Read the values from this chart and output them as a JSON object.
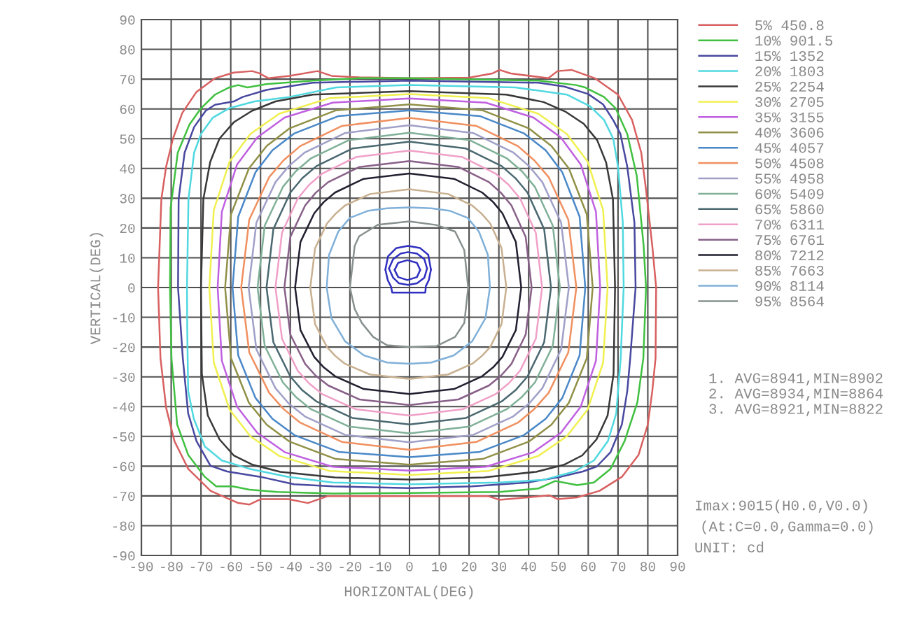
{
  "chart_data": {
    "type": "line",
    "xlabel": "HORIZONTAL(DEG)",
    "ylabel": "VERTICAL(DEG)",
    "xlim": [
      -90,
      90
    ],
    "ylim": [
      -90,
      90
    ],
    "xticks": [
      -90,
      -80,
      -70,
      -60,
      -50,
      -40,
      -30,
      -20,
      -10,
      0,
      10,
      20,
      30,
      40,
      50,
      60,
      70,
      80,
      90
    ],
    "yticks": [
      -90,
      -80,
      -70,
      -60,
      -50,
      -40,
      -30,
      -20,
      -10,
      0,
      10,
      20,
      30,
      40,
      50,
      60,
      70,
      80,
      90
    ],
    "grid": true,
    "legend": "top right",
    "annotations": [
      "1. AVG=8941,MIN=8902",
      "2. AVG=8934,MIN=8864",
      "3. AVG=8921,MIN=8822",
      "Imax:9015(H0.0,V0.0)",
      "(At:C=0.0,Gamma=0.0)",
      "UNIT: cd"
    ],
    "series": [
      {
        "name": "5% 450.8",
        "color": "#d86060",
        "x": [
          -84.4,
          -83.3,
          -81.7,
          -79.4,
          -76.3,
          -71.6,
          -65.3,
          -59,
          -52.8,
          -50.5,
          -47.3,
          -40.3,
          -30.9,
          -26.2,
          -16.9,
          0,
          20,
          27.8,
          30.2,
          34,
          46.6,
          49.7,
          54.4,
          62.2,
          70,
          74.7,
          77.8,
          79.4,
          81.5,
          82.8
        ],
        "values": [
          0,
          29.7,
          40.6,
          50,
          58.6,
          65.6,
          70.3,
          72.2,
          72.7,
          72,
          70.3,
          71.1,
          72.7,
          71.1,
          70.6,
          70.3,
          70.5,
          71.9,
          73.1,
          71.9,
          70.3,
          72.7,
          73.1,
          70.3,
          64.8,
          56.3,
          45.3,
          32.8,
          14,
          0
        ]
      },
      {
        "color": "#d86060",
        "x": [
          -84.4,
          -83.6,
          -81.7,
          -78.9,
          -74.3,
          -66.8,
          -57.5,
          -53.7,
          -50,
          -40.7,
          -34.1,
          -27.6,
          -16.4,
          0,
          26.5,
          30.2,
          39.6,
          47,
          49.8,
          56.3,
          63.8,
          71.3,
          76.9,
          80,
          81.5,
          82.6,
          82.8
        ],
        "values": [
          0,
          -23.7,
          -40.4,
          -51.6,
          -60.9,
          -68.3,
          -72.4,
          -72.9,
          -71.1,
          -71.1,
          -72.4,
          -70.1,
          -70.1,
          -70.1,
          -70.1,
          -71.3,
          -70.5,
          -69.8,
          -71.1,
          -70.5,
          -68.3,
          -63.6,
          -56.2,
          -46,
          -34.8,
          -23.7,
          0
        ]
      },
      {
        "name": "10% 901.5",
        "color": "#40c040",
        "x": [
          -80.4,
          -80.2,
          -77.8,
          -73.9,
          -70,
          -65.3,
          -60.6,
          -57.5,
          -54.4,
          -48.1,
          -32.5,
          -16.9,
          0,
          43.4,
          55.9,
          59,
          65.3,
          69.2,
          73.1,
          76.3,
          78.6,
          79.4
        ],
        "values": [
          0,
          26.6,
          45.3,
          54.7,
          60.2,
          64.8,
          67.2,
          68,
          67.2,
          68.3,
          69.5,
          70.3,
          70.3,
          69.5,
          68,
          67.2,
          64,
          60.2,
          51.6,
          37.5,
          14,
          0
        ]
      },
      {
        "color": "#40c040",
        "x": [
          -80.4,
          -79.9,
          -78,
          -74.3,
          -68.7,
          -64.9,
          -59.3,
          -53.7,
          -44.4,
          -25.7,
          0,
          30.2,
          43.3,
          48.9,
          51.7,
          56.3,
          61.9,
          67.5,
          72.2,
          76.5,
          78.5,
          79.4
        ],
        "values": [
          0,
          -23.7,
          -46,
          -56.2,
          -63.6,
          -66.8,
          -66.8,
          -67.9,
          -68.7,
          -69.2,
          -69,
          -68.7,
          -67.5,
          -65,
          -65.5,
          -66.4,
          -65.5,
          -60.9,
          -51.6,
          -38.6,
          -23.7,
          0
        ]
      },
      {
        "name": "15% 1352",
        "color": "#4848a0",
        "x": [
          -77.7,
          -77.5,
          -75.5,
          -72.3,
          -68.4,
          -65.3,
          -59,
          -56,
          -48,
          -32.5,
          0,
          43.4,
          52,
          60,
          65,
          68.5,
          70.8,
          73.1,
          75.5,
          75.9
        ],
        "values": [
          0,
          29.7,
          45.3,
          53.9,
          59.4,
          61.4,
          62.5,
          64,
          66.4,
          68.8,
          69.5,
          68.8,
          67.5,
          65,
          61.5,
          56,
          51.6,
          40.6,
          21.9,
          0
        ]
      },
      {
        "color": "#4848a0",
        "x": [
          -77.7,
          -76.1,
          -74.3,
          -71.5,
          -66.8,
          -61.2,
          -50,
          -38.8,
          -25.7,
          0,
          20.9,
          39.6,
          50.7,
          58.2,
          62.9,
          67.5,
          71.3,
          73.1,
          74.1,
          75.9
        ],
        "values": [
          0,
          -23.7,
          -42.3,
          -51.6,
          -59.9,
          -61.8,
          -63.6,
          -66.1,
          -66.8,
          -67.4,
          -66.8,
          -65.5,
          -63.6,
          -61.8,
          -60.1,
          -55.3,
          -46,
          -34.8,
          -23.7,
          0
        ]
      },
      {
        "name": "20% 1803",
        "color": "#50d8e0",
        "x": [
          -74.7,
          -74.2,
          -72.3,
          -70,
          -66.1,
          -60.6,
          -52,
          -40.3,
          -24.7,
          0,
          35.6,
          52.8,
          60.6,
          65.3,
          68.4,
          70,
          71.6,
          71.9
        ],
        "values": [
          0,
          29.7,
          45.3,
          51.6,
          57,
          60.2,
          62.5,
          64,
          67.2,
          68,
          67.2,
          64.8,
          60.9,
          56.3,
          50,
          40.6,
          21.9,
          0
        ]
      },
      {
        "color": "#50d8e0",
        "x": [
          -74.7,
          -74.6,
          -74.3,
          -72.4,
          -68.7,
          -63,
          -53.7,
          -40.7,
          -25.7,
          0,
          30.2,
          45.1,
          55.4,
          61.9,
          66.6,
          69.4,
          70.3,
          70.9,
          71.9
        ],
        "values": [
          0,
          -15,
          -34.8,
          -44.1,
          -53.4,
          -58.1,
          -60.9,
          -63.6,
          -65.5,
          -66.1,
          -65.5,
          -64.6,
          -61.8,
          -58.1,
          -51.6,
          -42.3,
          -31.1,
          -23.7,
          0
        ]
      },
      {
        "name": "25% 2254",
        "color": "#383838",
        "x": [
          -70,
          -69.2,
          -66.9,
          -63.8,
          -59,
          -52.8,
          -45,
          -32.5,
          0,
          32.5,
          45,
          52.5,
          58.5,
          63,
          66,
          68.3,
          69
        ],
        "values": [
          0,
          29.7,
          42.2,
          50,
          55.5,
          59.4,
          62.5,
          64.8,
          66,
          64.8,
          62.3,
          59,
          55,
          49.5,
          42,
          29.7,
          0
        ]
      },
      {
        "color": "#383838",
        "x": [
          -70,
          -69.7,
          -67.7,
          -63.8,
          -59,
          -52.8,
          -43.4,
          -25,
          0,
          25,
          42.5,
          52,
          58,
          62.8,
          66.5,
          68.5,
          69
        ],
        "values": [
          0,
          -29,
          -43,
          -51,
          -56.4,
          -59.5,
          -61.9,
          -63.8,
          -64.5,
          -63.8,
          -61.9,
          -59.5,
          -56.4,
          -51,
          -43,
          -29,
          0
        ]
      },
      {
        "name": "30% 2705",
        "color": "#f0f050",
        "x": [
          -67.2,
          -65.7,
          -60.4,
          -53.4,
          -43.7,
          -26.9,
          0,
          26.6,
          43.2,
          52.8,
          59.8,
          65,
          66.5
        ],
        "values": [
          0,
          26,
          42.3,
          51.6,
          58.4,
          63.6,
          65,
          63.6,
          58.4,
          51.6,
          42.3,
          26,
          0
        ]
      },
      {
        "color": "#f0f050",
        "x": [
          -67.2,
          -65.7,
          -60.4,
          -53.4,
          -43.7,
          -26.9,
          0,
          26.6,
          43.2,
          52.8,
          59.8,
          65,
          66.5
        ],
        "values": [
          0,
          -25.2,
          -41,
          -50,
          -56.6,
          -61.6,
          -63,
          -61.6,
          -56.6,
          -50,
          -41,
          -25.2,
          0
        ]
      },
      {
        "name": "35% 3155",
        "color": "#c060e0",
        "x": [
          -64.4,
          -63,
          -57.9,
          -51.1,
          -41.9,
          -25.8,
          0,
          25.6,
          41.6,
          50.8,
          57.5,
          62.6,
          64
        ],
        "values": [
          0,
          25.4,
          41.3,
          50.4,
          57.1,
          62.1,
          63.5,
          62.1,
          57.1,
          50.4,
          41.3,
          25.4,
          0
        ]
      },
      {
        "color": "#c060e0",
        "x": [
          -64.4,
          -63,
          -57.9,
          -51.1,
          -41.9,
          -25.8,
          0,
          25.6,
          41.6,
          50.8,
          57.5,
          62.6,
          64
        ],
        "values": [
          0,
          -24.6,
          -40,
          -48.8,
          -55.3,
          -60.2,
          -61.5,
          -60.2,
          -55.3,
          -48.8,
          -40,
          -24.6,
          0
        ]
      },
      {
        "name": "40% 3606",
        "color": "#909048",
        "x": [
          -61.9,
          -59.9,
          -53.9,
          -47.9,
          -40.2,
          -24.8,
          0,
          24.6,
          40,
          47.6,
          53.5,
          59.5,
          61.5
        ],
        "values": [
          0,
          24.6,
          40,
          47.6,
          53.5,
          59.5,
          61.5,
          59.5,
          53.5,
          47.6,
          40,
          24.6,
          0
        ]
      },
      {
        "color": "#909048",
        "x": [
          -61.9,
          -59.9,
          -53.9,
          -47.9,
          -40.2,
          -24.8,
          0,
          24.6,
          40,
          47.6,
          53.5,
          59.5,
          61.5
        ],
        "values": [
          0,
          -23.8,
          -38.7,
          -46.1,
          -51.8,
          -57.6,
          -59.5,
          -57.6,
          -51.8,
          -46.1,
          -38.7,
          -23.8,
          0
        ]
      },
      {
        "name": "45% 4057",
        "color": "#4a88c8",
        "x": [
          -59.4,
          -57.5,
          -51.7,
          -46,
          -38.6,
          -23.8,
          0,
          23.6,
          38.4,
          45.7,
          51.3,
          57.1,
          59
        ],
        "values": [
          0,
          23.8,
          38.7,
          46.1,
          51.8,
          57.6,
          59.5,
          57.6,
          51.8,
          46.1,
          38.7,
          23.8,
          0
        ]
      },
      {
        "color": "#4a88c8",
        "x": [
          -59.4,
          -57.5,
          -51.7,
          -46,
          -38.6,
          -23.8,
          0,
          23.6,
          38.4,
          45.7,
          51.3,
          57.1,
          59
        ],
        "values": [
          0,
          -22.8,
          -37.1,
          -44.1,
          -49.6,
          -55.2,
          -57,
          -55.2,
          -49.6,
          -44.1,
          -37.1,
          -22.8,
          0
        ]
      },
      {
        "name": "50% 4508",
        "color": "#f09060",
        "x": [
          -56.5,
          -53.8,
          -47.1,
          -42.3,
          -36.7,
          -22.6,
          0,
          22.4,
          36.4,
          41.9,
          46.7,
          53.3,
          56
        ],
        "values": [
          0,
          22.8,
          37.1,
          42.7,
          47.5,
          54.3,
          57,
          54.3,
          47.5,
          42.7,
          37.1,
          22.8,
          0
        ]
      },
      {
        "color": "#f09060",
        "x": [
          -56.5,
          -53.8,
          -47.1,
          -42.3,
          -36.7,
          -22.6,
          0,
          22.4,
          36.4,
          41.9,
          46.7,
          53.3,
          56
        ],
        "values": [
          0,
          -21.8,
          -35.4,
          -40.8,
          -45.4,
          -51.9,
          -54.5,
          -51.9,
          -45.4,
          -40.8,
          -35.4,
          -21.8,
          0
        ]
      },
      {
        "name": "55% 4958",
        "color": "#a0a0c8",
        "x": [
          -54,
          -51.4,
          -45,
          -40.5,
          -35.1,
          -21.6,
          0,
          21.4,
          34.8,
          40.1,
          44.6,
          50.9,
          53.5
        ],
        "values": [
          0,
          21.8,
          35.4,
          40.8,
          45.4,
          51.9,
          54.5,
          51.9,
          45.4,
          40.8,
          35.4,
          21.8,
          0
        ]
      },
      {
        "color": "#a0a0c8",
        "x": [
          -54,
          -51.4,
          -45,
          -40.5,
          -35.1,
          -21.6,
          0,
          21.4,
          34.8,
          40.1,
          44.6,
          50.9,
          53.5
        ],
        "values": [
          0,
          -20.8,
          -33.8,
          -39,
          -43.3,
          -49.5,
          -52,
          -49.5,
          -43.3,
          -39,
          -33.8,
          -20.8,
          0
        ]
      },
      {
        "name": "60% 5409",
        "color": "#80b098",
        "x": [
          -51,
          -48.6,
          -42.5,
          -38.2,
          -33.2,
          -20.4,
          0,
          20.2,
          32.8,
          37.8,
          42.1,
          48.1,
          50.5
        ],
        "values": [
          0,
          20.8,
          33.8,
          39,
          43.3,
          49.5,
          52,
          49.5,
          43.3,
          39,
          33.8,
          20.8,
          0
        ]
      },
      {
        "color": "#80b098",
        "x": [
          -51,
          -48.6,
          -42.5,
          -38.2,
          -33.2,
          -20.4,
          0,
          20.2,
          32.8,
          37.8,
          42.1,
          48.1,
          50.5
        ],
        "values": [
          0,
          -19.6,
          -31.9,
          -36.7,
          -40.8,
          -46.7,
          -49,
          -46.7,
          -40.8,
          -36.7,
          -31.9,
          -19.6,
          0
        ]
      },
      {
        "name": "65% 5860",
        "color": "#4a6870",
        "x": [
          -48,
          -45.7,
          -40,
          -36,
          -31.2,
          -19.2,
          0,
          19,
          30.9,
          35.6,
          39.6,
          45.2,
          47.5
        ],
        "values": [
          0,
          19.6,
          31.9,
          36.7,
          40.8,
          46.7,
          49,
          46.7,
          40.8,
          36.7,
          31.9,
          19.6,
          0
        ]
      },
      {
        "color": "#4a6870",
        "x": [
          -48,
          -45.7,
          -40,
          -36,
          -31.2,
          -19.2,
          0,
          19,
          30.9,
          35.6,
          39.6,
          45.2,
          47.5
        ],
        "values": [
          0,
          -18.4,
          -29.9,
          -34.5,
          -38.3,
          -43.8,
          -46,
          -43.8,
          -38.3,
          -34.5,
          -29.9,
          -18.4,
          0
        ]
      },
      {
        "name": "70% 6311",
        "color": "#f0a0c8",
        "x": [
          -45,
          -42.8,
          -37.5,
          -33.7,
          -29.3,
          -18,
          0,
          17.8,
          28.9,
          33.3,
          37.1,
          42.4,
          44.5
        ],
        "values": [
          0,
          18.4,
          29.9,
          34.5,
          38.3,
          43.8,
          46,
          43.8,
          38.3,
          34.5,
          29.9,
          18.4,
          0
        ]
      },
      {
        "color": "#f0a0c8",
        "x": [
          -45,
          -42.8,
          -37.5,
          -33.7,
          -29.3,
          -18,
          0,
          17.8,
          28.9,
          33.3,
          37.1,
          42.4,
          44.5
        ],
        "values": [
          0,
          -17.2,
          -28,
          -32.2,
          -35.8,
          -40.9,
          -43,
          -40.9,
          -35.8,
          -32.2,
          -28,
          -17.2,
          0
        ]
      },
      {
        "name": "75% 6761",
        "color": "#886088",
        "x": [
          -42,
          -40,
          -35,
          -31.5,
          -27.3,
          -16.8,
          0,
          16.4,
          26.7,
          30.7,
          34.2,
          39,
          41
        ],
        "values": [
          0,
          17,
          27.6,
          31.8,
          35.4,
          40.5,
          42.5,
          40.5,
          35.4,
          31.8,
          27.6,
          17,
          0
        ]
      },
      {
        "color": "#886088",
        "x": [
          -42,
          -40,
          -35,
          -31.5,
          -27.3,
          -16.8,
          0,
          16.4,
          26.7,
          30.7,
          34.2,
          39,
          41
        ],
        "values": [
          0,
          -15.8,
          -25.7,
          -29.6,
          -32.9,
          -37.6,
          -39.5,
          -37.6,
          -32.9,
          -29.6,
          -25.7,
          -15.8,
          0
        ]
      },
      {
        "name": "80% 7212",
        "color": "#202030",
        "x": [
          -38.4,
          -36.6,
          -32,
          -28.8,
          -25,
          -15.4,
          0,
          15,
          24.4,
          28.1,
          31.2,
          35.7,
          37.5
        ],
        "values": [
          0,
          15.3,
          24.9,
          28.7,
          31.9,
          36.5,
          38.3,
          36.5,
          31.9,
          28.7,
          24.9,
          15.3,
          0
        ]
      },
      {
        "color": "#202030",
        "x": [
          -38.4,
          -36.6,
          -32,
          -28.8,
          -25,
          -15.4,
          0,
          15,
          24.4,
          28.1,
          31.2,
          35.7,
          37.5
        ],
        "values": [
          0,
          -14.3,
          -23.3,
          -26.8,
          -29.8,
          -34.1,
          -35.8,
          -34.1,
          -29.8,
          -26.8,
          -23.3,
          -14.3,
          0
        ]
      },
      {
        "name": "85% 7663",
        "color": "#c8b090",
        "x": [
          -33.3,
          -31.7,
          -27.7,
          -24.9,
          -21.7,
          -13.3,
          0,
          13,
          21.1,
          24.3,
          27.1,
          30.9,
          32.5
        ],
        "values": [
          0,
          13.2,
          21.5,
          24.7,
          27.5,
          31.4,
          33,
          31.4,
          27.5,
          24.7,
          21.5,
          13.2,
          0
        ]
      },
      {
        "color": "#c8b090",
        "x": [
          -33.3,
          -31.7,
          -27.7,
          -24.9,
          -21.7,
          -13.3,
          0,
          13,
          21.1,
          24.3,
          27.1,
          30.9,
          32.5
        ],
        "values": [
          0,
          -12.3,
          -20,
          -23,
          -25.6,
          -29.2,
          -30.7,
          -29.2,
          -25.6,
          -23,
          -20,
          -12.3,
          0
        ]
      },
      {
        "name": "90% 8114",
        "color": "#80b0d8",
        "x": [
          -27.8,
          -27,
          -23.9,
          -20,
          -13.8,
          -7.5,
          0,
          7.3,
          13.4,
          19.5,
          23.3,
          26.3,
          27
        ],
        "values": [
          0,
          11,
          18.8,
          23.4,
          25.8,
          26.6,
          26.9,
          26.6,
          25.8,
          23.4,
          18.8,
          11,
          0
        ]
      },
      {
        "color": "#80b0d8",
        "x": [
          -27.8,
          -26.2,
          -21.6,
          -15.3,
          -7.5,
          0,
          7.3,
          14.9,
          21,
          25.5,
          27
        ],
        "values": [
          0,
          -10.3,
          -18.1,
          -22.8,
          -25.2,
          -25.6,
          -25.2,
          -22.8,
          -18.1,
          -10.3,
          0
        ]
      },
      {
        "name": "95% 8564",
        "color": "#889090",
        "x": [
          -20,
          -18.4,
          -16.9,
          -10.6,
          0,
          9,
          15.3,
          18.4,
          19.7
        ],
        "values": [
          0,
          14,
          17.2,
          21.1,
          22.2,
          21,
          18.8,
          12.5,
          0
        ]
      },
      {
        "color": "#889090",
        "x": [
          -20,
          -18.4,
          -16,
          -12.2,
          -7.5,
          0,
          9,
          15.3,
          18.4,
          19.7
        ],
        "values": [
          0,
          -7.2,
          -11.9,
          -16.6,
          -19.4,
          -20,
          -19.7,
          -16.6,
          -11.9,
          0
        ]
      },
      {
        "color": "#3030c0",
        "x": [
          -8.1,
          -7.2,
          -4.5,
          -0.5,
          3.5,
          6.3,
          7.2
        ],
        "values": [
          6,
          10.5,
          13.2,
          14,
          13.3,
          11,
          6
        ]
      },
      {
        "color": "#3030c0",
        "x": [
          -8.1,
          -7.3,
          -6.2,
          -5.8,
          5.3,
          5.5,
          6.5,
          7.2
        ],
        "values": [
          6,
          2.5,
          0.3,
          -1.7,
          -1.7,
          0.5,
          2.5,
          6
        ]
      },
      {
        "color": "#3030c0",
        "x": [
          -6.9,
          -5.5,
          -3,
          -0.5,
          2.5,
          5,
          5.9
        ],
        "values": [
          6.4,
          9.5,
          11.4,
          11.9,
          11.4,
          9.5,
          6.4
        ]
      },
      {
        "color": "#3030c0",
        "x": [
          -6.9,
          -5.5,
          -3.5,
          -0.5,
          2.5,
          5,
          5.9
        ],
        "values": [
          6.4,
          3.3,
          1.4,
          0.9,
          1.4,
          3.3,
          6.4
        ]
      },
      {
        "color": "#3030c0",
        "x": [
          -5,
          -3.8,
          -0.7,
          2.5,
          3.6
        ],
        "values": [
          5.9,
          8.3,
          9.2,
          8.3,
          5.9
        ]
      },
      {
        "color": "#3030c0",
        "x": [
          -5,
          -3.8,
          -0.7,
          2.5,
          3.6
        ],
        "values": [
          5.9,
          3.5,
          2.5,
          3.5,
          5.9
        ]
      }
    ]
  }
}
